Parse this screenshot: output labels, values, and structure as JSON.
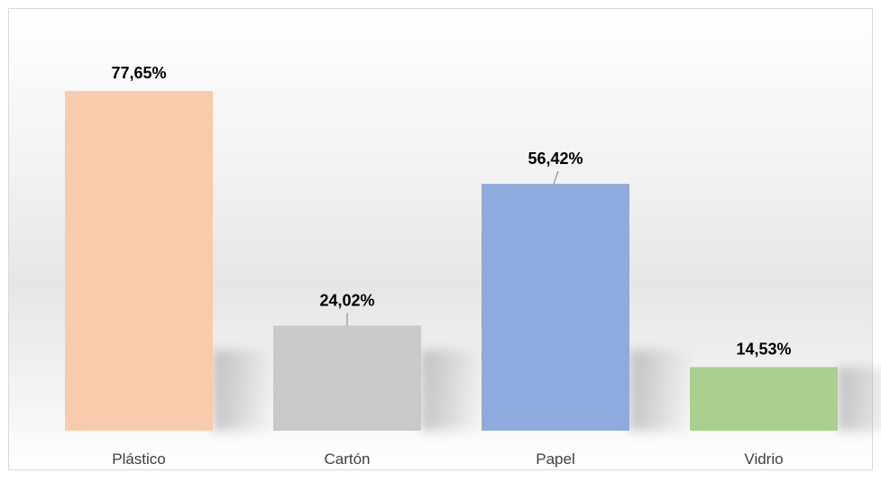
{
  "chart_data": {
    "type": "bar",
    "title": "",
    "xlabel": "",
    "ylabel": "",
    "categories": [
      "Plástico",
      "Cartón",
      "Papel",
      "Vidrio"
    ],
    "values": [
      77.65,
      24.02,
      56.42,
      14.53
    ],
    "value_labels": [
      "77,65%",
      "24,02%",
      "56,42%",
      "14,53%"
    ],
    "colors": [
      "#f8cbad",
      "#c9c9c9",
      "#8faadc",
      "#a9d18e"
    ],
    "ylim": [
      0,
      77.65
    ],
    "grid": false,
    "legend": "none"
  }
}
